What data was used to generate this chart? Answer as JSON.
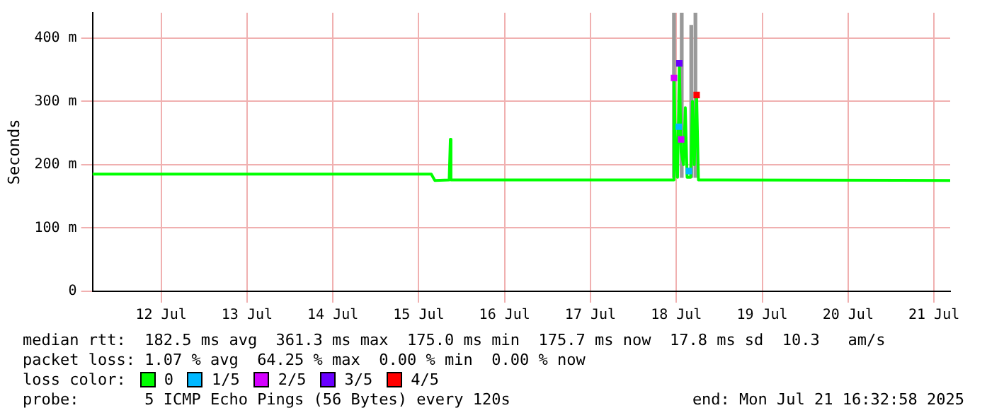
{
  "chart_data": {
    "type": "line",
    "ylabel": "Seconds",
    "legend_title": "loss color:",
    "legend": "bottom",
    "grid": true,
    "marker": "square",
    "xlim": [
      "2025-07-11T16:48",
      "2025-07-21T16:32"
    ],
    "xticks": [
      {
        "value": "2025-07-12T12:00",
        "label": "12 Jul"
      },
      {
        "value": "2025-07-13T12:00",
        "label": "13 Jul"
      },
      {
        "value": "2025-07-14T12:00",
        "label": "14 Jul"
      },
      {
        "value": "2025-07-15T12:00",
        "label": "15 Jul"
      },
      {
        "value": "2025-07-16T12:00",
        "label": "16 Jul"
      },
      {
        "value": "2025-07-17T12:00",
        "label": "17 Jul"
      },
      {
        "value": "2025-07-18T12:00",
        "label": "18 Jul"
      },
      {
        "value": "2025-07-19T12:00",
        "label": "19 Jul"
      },
      {
        "value": "2025-07-20T12:00",
        "label": "20 Jul"
      },
      {
        "value": "2025-07-21T12:00",
        "label": "21 Jul"
      }
    ],
    "ylim": [
      0,
      440
    ],
    "yticks": [
      0,
      {
        "value": 100,
        "label": "100 m"
      },
      {
        "value": 200,
        "label": "200 m"
      },
      {
        "value": 300,
        "label": "300 m"
      },
      {
        "value": 400,
        "label": "400 m"
      }
    ],
    "series": [
      {
        "type": "bar",
        "color": "#999999",
        "x": [
          "2025-07-18T11:20",
          "2025-07-18T13:30",
          "2025-07-18T16:10",
          "2025-07-18T17:20"
        ],
        "base": [
          180,
          180,
          180,
          180
        ],
        "values": [
          260,
          260,
          240,
          260
        ]
      },
      {
        "name": "0",
        "marker": "none",
        "color": "#00ff00",
        "x": [
          "2025-07-11T16:48",
          "2025-07-15T15:30",
          "2025-07-15T16:30",
          "2025-07-15T20:30",
          "2025-07-15T20:50",
          "2025-07-15T21:00",
          "2025-07-18T11:10",
          "2025-07-18T11:20",
          "2025-07-18T11:50",
          "2025-07-18T12:20",
          "2025-07-18T12:50",
          "2025-07-18T13:20",
          "2025-07-18T14:00",
          "2025-07-18T14:30",
          "2025-07-18T15:00",
          "2025-07-18T16:00",
          "2025-07-18T16:30",
          "2025-07-18T17:00",
          "2025-07-18T17:40",
          "2025-07-18T18:10",
          "2025-07-21T16:32"
        ],
        "values": [
          185,
          185,
          175,
          176,
          240,
          176,
          176,
          337,
          210,
          180,
          360,
          220,
          200,
          290,
          180,
          180,
          300,
          200,
          310,
          176,
          175
        ]
      },
      {
        "name": "1/5",
        "type": "scatter",
        "color": "#00b8ff",
        "x": [
          "2025-07-18T12:40",
          "2025-07-18T15:30"
        ],
        "values": [
          260,
          190
        ]
      },
      {
        "name": "2/5",
        "type": "scatter",
        "color": "#d400ff",
        "x": [
          "2025-07-18T11:20",
          "2025-07-18T13:20"
        ],
        "values": [
          337,
          240
        ]
      },
      {
        "name": "3/5",
        "type": "scatter",
        "color": "#6a00ff",
        "x": [
          "2025-07-18T12:50"
        ],
        "values": [
          360
        ]
      },
      {
        "name": "4/5",
        "type": "scatter",
        "color": "#ff0000",
        "x": [
          "2025-07-18T17:40"
        ],
        "values": [
          310
        ]
      }
    ],
    "annotations": [
      "median rtt:  182.5 ms avg  361.3 ms max  175.0 ms min  175.7 ms now  17.8 ms sd  10.3   am/s",
      "packet loss: 1.07 % avg  64.25 % max  0.00 % min  0.00 % now",
      "probe:       5 ICMP Echo Pings (56 Bytes) every 120s",
      "end: Mon Jul 21 16:32:58 2025"
    ]
  }
}
